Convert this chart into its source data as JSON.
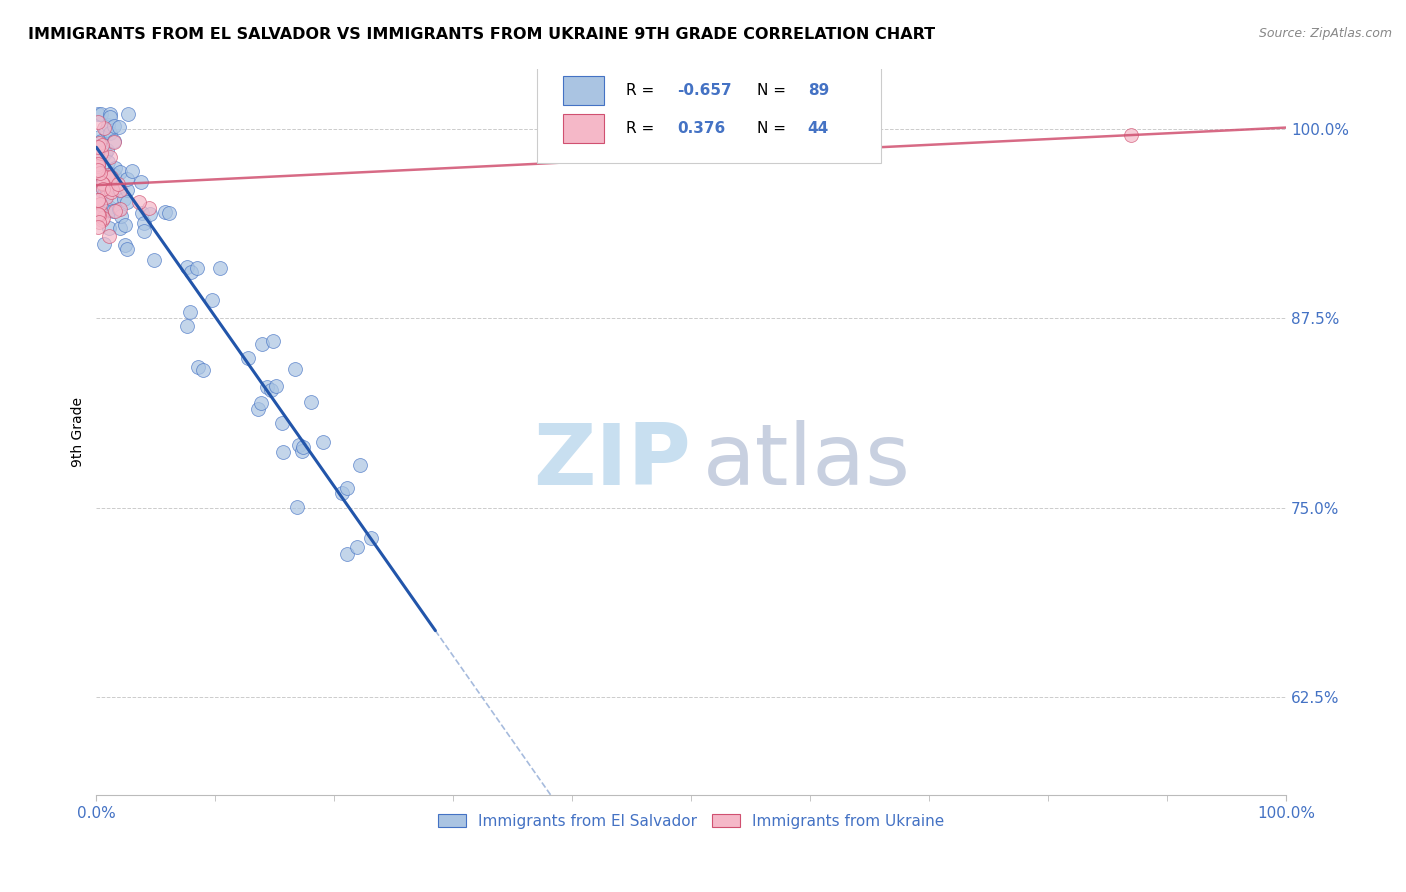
{
  "title": "IMMIGRANTS FROM EL SALVADOR VS IMMIGRANTS FROM UKRAINE 9TH GRADE CORRELATION CHART",
  "source": "Source: ZipAtlas.com",
  "ylabel": "9th Grade",
  "blue_R": -0.657,
  "blue_N": 89,
  "pink_R": 0.376,
  "pink_N": 44,
  "blue_color": "#aac4e2",
  "blue_edge_color": "#4472c4",
  "blue_line_color": "#2255aa",
  "pink_color": "#f5b8c8",
  "pink_edge_color": "#d05070",
  "pink_line_color": "#d05070",
  "watermark_zip_color": "#c8dff0",
  "watermark_atlas_color": "#c8d0e0",
  "legend_label_blue": "Immigrants from El Salvador",
  "legend_label_pink": "Immigrants from Ukraine",
  "xlim": [
    0.0,
    1.0
  ],
  "ylim": [
    0.56,
    1.04
  ],
  "yticks": [
    0.625,
    0.75,
    0.875,
    1.0
  ],
  "ytick_labels": [
    "62.5%",
    "75.0%",
    "87.5%",
    "100.0%"
  ],
  "xtick_labels": [
    "0.0%",
    "100.0%"
  ],
  "tick_color": "#4472c4",
  "grid_color": "#cccccc"
}
